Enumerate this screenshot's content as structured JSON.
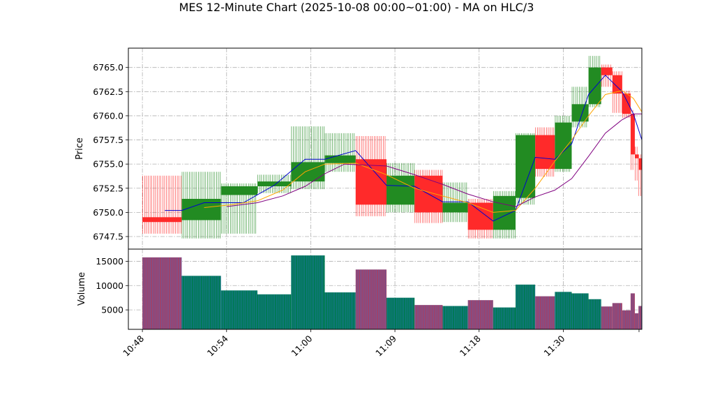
{
  "chart_data": {
    "type": "candlestick",
    "title": "MES 12-Minute Chart (2025-10-08 00:00~01:00) - MA on HLC/3",
    "price_panel": {
      "ylabel": "Price",
      "ylim": [
        6746.2,
        6767.0
      ],
      "yticks": [
        6747.5,
        6750.0,
        6752.5,
        6755.0,
        6757.5,
        6760.0,
        6762.5,
        6765.0
      ],
      "ytick_labels": [
        "6747.5",
        "6750.0",
        "6752.5",
        "6755.0",
        "6757.5",
        "6760.0",
        "6762.5",
        "6765.0"
      ],
      "grid": true
    },
    "volume_panel": {
      "ylabel": "Volume",
      "ylim": [
        1000,
        17500
      ],
      "yticks": [
        5000,
        10000,
        15000
      ],
      "ytick_labels": [
        "5000",
        "10000",
        "15000"
      ],
      "grid": true
    },
    "xlim": [
      10.5,
      28.8
    ],
    "xticks": [
      11.0,
      14.0,
      17.0,
      20.0,
      23.0,
      26.0,
      28.7
    ],
    "xtick_labels": [
      "10:48",
      "10:54",
      "11:00",
      "11:09",
      "11:18",
      "11:30",
      ""
    ],
    "colors": {
      "up": "#228B22",
      "down": "#FF2A2A",
      "ma_fast": "#0000CD",
      "ma_mid": "#FFA500",
      "ma_slow": "#800080",
      "vol_up": "#007A55",
      "vol_down": "#A0426A"
    },
    "candles": [
      {
        "x0": 11.0,
        "x1": 12.4,
        "open": 6749.5,
        "high": 6753.8,
        "low": 6747.8,
        "close": 6749.0,
        "volume": 15800
      },
      {
        "x0": 12.4,
        "x1": 13.8,
        "open": 6749.2,
        "high": 6754.2,
        "low": 6747.3,
        "close": 6751.4,
        "volume": 12000
      },
      {
        "x0": 13.8,
        "x1": 15.1,
        "open": 6751.8,
        "high": 6753.0,
        "low": 6747.8,
        "close": 6752.7,
        "volume": 9000
      },
      {
        "x0": 15.1,
        "x1": 16.3,
        "open": 6752.7,
        "high": 6753.9,
        "low": 6752.0,
        "close": 6753.2,
        "volume": 8200
      },
      {
        "x0": 16.3,
        "x1": 17.5,
        "open": 6753.2,
        "high": 6758.9,
        "low": 6752.4,
        "close": 6755.2,
        "volume": 16200
      },
      {
        "x0": 17.5,
        "x1": 18.6,
        "open": 6755.1,
        "high": 6758.2,
        "low": 6754.2,
        "close": 6755.9,
        "volume": 8600
      },
      {
        "x0": 18.6,
        "x1": 19.7,
        "open": 6755.5,
        "high": 6757.9,
        "low": 6749.6,
        "close": 6750.8,
        "volume": 13300
      },
      {
        "x0": 19.7,
        "x1": 20.7,
        "open": 6750.8,
        "high": 6755.1,
        "low": 6750.0,
        "close": 6753.8,
        "volume": 7500
      },
      {
        "x0": 20.7,
        "x1": 21.7,
        "open": 6753.8,
        "high": 6754.4,
        "low": 6748.9,
        "close": 6750.0,
        "volume": 6000
      },
      {
        "x0": 21.7,
        "x1": 22.6,
        "open": 6750.0,
        "high": 6753.1,
        "low": 6749.0,
        "close": 6751.0,
        "volume": 5800
      },
      {
        "x0": 22.6,
        "x1": 23.5,
        "open": 6751.0,
        "high": 6751.4,
        "low": 6747.3,
        "close": 6748.2,
        "volume": 7000
      },
      {
        "x0": 23.5,
        "x1": 24.3,
        "open": 6748.2,
        "high": 6752.2,
        "low": 6747.3,
        "close": 6751.7,
        "volume": 5500
      },
      {
        "x0": 24.3,
        "x1": 25.0,
        "open": 6751.5,
        "high": 6758.2,
        "low": 6750.8,
        "close": 6758.0,
        "volume": 10200
      },
      {
        "x0": 25.0,
        "x1": 25.7,
        "open": 6758.0,
        "high": 6758.8,
        "low": 6753.7,
        "close": 6754.5,
        "volume": 7800
      },
      {
        "x0": 25.7,
        "x1": 26.3,
        "open": 6754.5,
        "high": 6760.0,
        "low": 6754.2,
        "close": 6759.3,
        "volume": 8700
      },
      {
        "x0": 26.3,
        "x1": 26.9,
        "open": 6759.4,
        "high": 6763.0,
        "low": 6758.8,
        "close": 6761.2,
        "volume": 8400
      },
      {
        "x0": 26.9,
        "x1": 27.35,
        "open": 6761.2,
        "high": 6766.2,
        "low": 6760.9,
        "close": 6765.0,
        "volume": 7200
      },
      {
        "x0": 27.35,
        "x1": 27.75,
        "open": 6765.0,
        "high": 6765.3,
        "low": 6763.0,
        "close": 6764.2,
        "volume": 5700
      },
      {
        "x0": 27.75,
        "x1": 28.1,
        "open": 6764.2,
        "high": 6764.6,
        "low": 6760.3,
        "close": 6762.3,
        "volume": 6400
      },
      {
        "x0": 28.1,
        "x1": 28.4,
        "open": 6762.3,
        "high": 6762.6,
        "low": 6759.8,
        "close": 6760.2,
        "volume": 4900
      },
      {
        "x0": 28.4,
        "x1": 28.55,
        "open": 6760.2,
        "high": 6760.6,
        "low": 6754.4,
        "close": 6756.0,
        "volume": 8400
      },
      {
        "x0": 28.55,
        "x1": 28.68,
        "open": 6756.0,
        "high": 6756.8,
        "low": 6753.3,
        "close": 6755.6,
        "volume": 4300
      },
      {
        "x0": 28.68,
        "x1": 28.8,
        "open": 6755.6,
        "high": 6756.0,
        "low": 6751.7,
        "close": 6754.4,
        "volume": 5800
      }
    ],
    "ma_series": [
      {
        "color_key": "ma_fast",
        "points": [
          [
            11.8,
            6750.2
          ],
          [
            12.4,
            6750.2
          ],
          [
            13.2,
            6751.0
          ],
          [
            14.6,
            6751.0
          ],
          [
            15.7,
            6752.8
          ],
          [
            16.8,
            6755.5
          ],
          [
            17.5,
            6755.5
          ],
          [
            18.6,
            6756.4
          ],
          [
            19.7,
            6752.8
          ],
          [
            20.7,
            6752.7
          ],
          [
            21.7,
            6751.1
          ],
          [
            22.6,
            6751.1
          ],
          [
            23.5,
            6749.1
          ],
          [
            24.3,
            6750.2
          ],
          [
            25.0,
            6755.7
          ],
          [
            25.7,
            6755.5
          ],
          [
            26.3,
            6757.1
          ],
          [
            26.9,
            6762.2
          ],
          [
            27.5,
            6764.2
          ],
          [
            28.1,
            6762.5
          ],
          [
            28.5,
            6760.2
          ],
          [
            28.8,
            6757.5
          ]
        ]
      },
      {
        "color_key": "ma_mid",
        "points": [
          [
            13.2,
            6750.5
          ],
          [
            14.2,
            6750.8
          ],
          [
            15.1,
            6751.2
          ],
          [
            16.0,
            6752.3
          ],
          [
            16.8,
            6754.2
          ],
          [
            17.5,
            6755.0
          ],
          [
            18.6,
            6755.1
          ],
          [
            19.7,
            6753.9
          ],
          [
            20.7,
            6752.5
          ],
          [
            21.7,
            6751.7
          ],
          [
            22.6,
            6751.0
          ],
          [
            23.5,
            6750.0
          ],
          [
            24.3,
            6750.2
          ],
          [
            25.0,
            6752.5
          ],
          [
            25.7,
            6755.3
          ],
          [
            26.3,
            6757.5
          ],
          [
            26.9,
            6760.0
          ],
          [
            27.5,
            6762.2
          ],
          [
            28.1,
            6762.6
          ],
          [
            28.5,
            6761.8
          ],
          [
            28.8,
            6760.4
          ]
        ]
      },
      {
        "color_key": "ma_slow",
        "points": [
          [
            14.0,
            6750.6
          ],
          [
            15.1,
            6751.0
          ],
          [
            16.0,
            6751.7
          ],
          [
            16.8,
            6752.7
          ],
          [
            17.5,
            6754.0
          ],
          [
            18.2,
            6755.0
          ],
          [
            19.7,
            6754.8
          ],
          [
            20.7,
            6753.9
          ],
          [
            21.7,
            6752.9
          ],
          [
            22.6,
            6751.9
          ],
          [
            23.5,
            6751.1
          ],
          [
            24.3,
            6750.6
          ],
          [
            25.0,
            6751.6
          ],
          [
            25.7,
            6752.3
          ],
          [
            26.3,
            6753.5
          ],
          [
            26.9,
            6755.8
          ],
          [
            27.5,
            6758.2
          ],
          [
            28.1,
            6759.6
          ],
          [
            28.5,
            6760.2
          ],
          [
            28.8,
            6760.2
          ]
        ]
      }
    ]
  }
}
